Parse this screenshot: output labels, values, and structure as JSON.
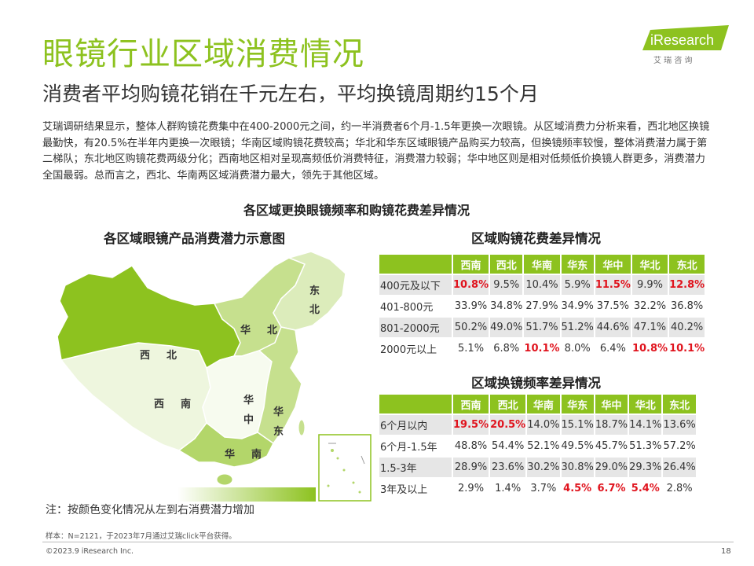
{
  "title": "眼镜行业区域消费情况",
  "subtitle": "消费者平均购镜花销在千元左右，平均换镜周期约15个月",
  "logo": {
    "text": "iResearch",
    "sub": "艾 瑞 咨 询"
  },
  "intro": "艾瑞调研结果显示，整体人群购镜花费集中在400-2000元之间，约一半消费者6个月-1.5年更换一次眼镜。从区域消费力分析来看，西北地区换镜最勤快，有20.5%在半年内更换一次眼镜；华南区域购镜花费较高；华北和华东区域眼镜产品购买力较高，但换镜频率较慢，整体消费潜力属于第二梯队；东北地区购镜花费两级分化；西南地区相对呈现高频低价消费特征，消费潜力较弱；华中地区则是相对低频低价换镜人群更多，消费潜力全国最弱。总而言之，西北、华南两区域消费潜力最大，领先于其他区域。",
  "section_title": "各区域更换眼镜频率和购镜花费差异情况",
  "map": {
    "title": "各区域眼镜产品消费潜力示意图",
    "labels": {
      "dongbei": [
        "东",
        "北"
      ],
      "huabei": [
        "华",
        "北"
      ],
      "xibei": [
        "西",
        "北"
      ],
      "xinan": [
        "西",
        "南"
      ],
      "huazhong": [
        "华",
        "中"
      ],
      "huadong": [
        "华",
        "东"
      ],
      "huanan": [
        "华",
        "南"
      ]
    },
    "colors": {
      "xibei": "#8dc21f",
      "huanan": "#b3d66a",
      "huabei": "#c6e08e",
      "huadong": "#c6e08e",
      "dongbei": "#dcecbb",
      "xinan": "#eef6de",
      "huazhong": "#f7fbef"
    }
  },
  "regions": [
    "西南",
    "西北",
    "华南",
    "华东",
    "华中",
    "华北",
    "东北"
  ],
  "price_table": {
    "title": "区域购镜花费差异情况",
    "rows": [
      {
        "label": "400元及以下",
        "values": [
          "10.8%",
          "9.5%",
          "10.4%",
          "5.9%",
          "11.5%",
          "9.9%",
          "12.8%"
        ],
        "highlight": [
          0,
          4,
          6
        ]
      },
      {
        "label": "401-800元",
        "values": [
          "33.9%",
          "34.8%",
          "27.9%",
          "34.9%",
          "37.5%",
          "32.2%",
          "36.8%"
        ],
        "highlight": []
      },
      {
        "label": "801-2000元",
        "values": [
          "50.2%",
          "49.0%",
          "51.7%",
          "51.2%",
          "44.6%",
          "47.1%",
          "40.2%"
        ],
        "highlight": []
      },
      {
        "label": "2000元以上",
        "values": [
          "5.1%",
          "6.8%",
          "10.1%",
          "8.0%",
          "6.4%",
          "10.8%",
          "10.1%"
        ],
        "highlight": [
          2,
          5,
          6
        ]
      }
    ]
  },
  "freq_table": {
    "title": "区域换镜频率差异情况",
    "rows": [
      {
        "label": "6个月以内",
        "values": [
          "19.5%",
          "20.5%",
          "14.0%",
          "15.1%",
          "18.7%",
          "14.1%",
          "13.6%"
        ],
        "highlight": [
          0,
          1
        ]
      },
      {
        "label": "6个月-1.5年",
        "values": [
          "48.8%",
          "54.4%",
          "52.1%",
          "49.5%",
          "45.7%",
          "51.3%",
          "57.2%"
        ],
        "highlight": []
      },
      {
        "label": "1.5-3年",
        "values": [
          "28.9%",
          "23.6%",
          "30.2%",
          "30.8%",
          "29.0%",
          "29.3%",
          "26.4%"
        ],
        "highlight": []
      },
      {
        "label": "3年及以上",
        "values": [
          "2.9%",
          "1.4%",
          "3.7%",
          "4.5%",
          "6.7%",
          "5.4%",
          "2.8%"
        ],
        "highlight": [
          3,
          4,
          5
        ]
      }
    ]
  },
  "note": "注：按颜色变化情况从左到右消费潜力增加",
  "sample": "样本：N=2121，于2023年7月通过艾瑞click平台获得。",
  "copyright": "©2023.9 iResearch Inc.",
  "page_number": "18"
}
